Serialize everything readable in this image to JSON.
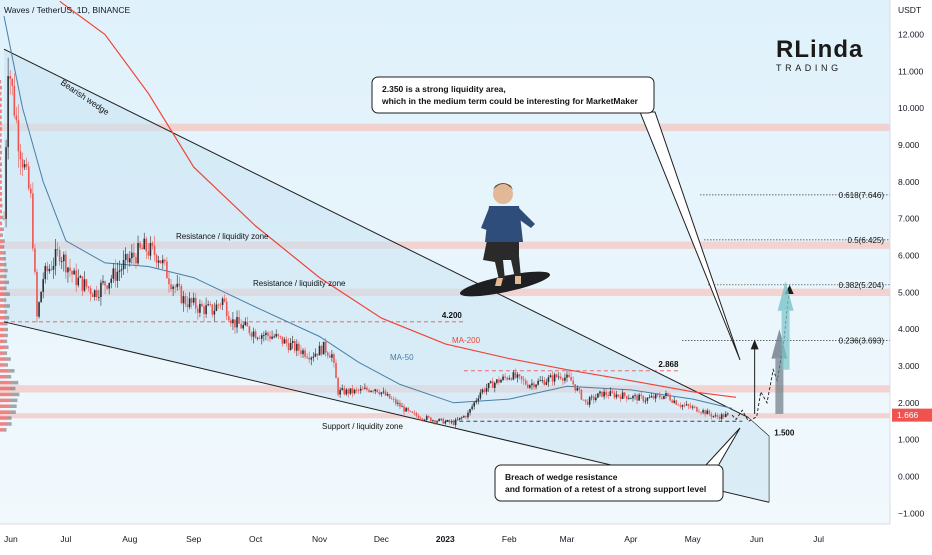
{
  "header": {
    "symbol_title": "Waves / TetherUS, 1D, BINANCE",
    "currency": "USDT"
  },
  "logo": {
    "text_top": "RLinda",
    "text_bottom": "TRADING"
  },
  "colors": {
    "background_top": "#dff1fb",
    "background_bottom": "#f2f9fd",
    "candle_up": "#26a69a",
    "candle_down": "#ef5350",
    "candle_dark": "#2b2f33",
    "ma50": "#4a7fa7",
    "ma200": "#f04438",
    "zone": "#f4c7c3",
    "wedge_fill": "#c9e4f3",
    "price_tag": "#ef5350",
    "fib_projection": "#7bc4c9"
  },
  "chart_data": {
    "type": "candlestick",
    "title": "Waves / TetherUS, 1D, BINANCE",
    "y_unit": "USDT",
    "ylim": [
      -1.2,
      12.9
    ],
    "x_range": [
      "2022-06-01",
      "2023-07-24"
    ],
    "y_axis_ticks": [
      "12.000",
      "11.000",
      "10.000",
      "9.000",
      "8.000",
      "7.000",
      "6.000",
      "5.000",
      "4.000",
      "3.000",
      "2.000",
      "1.000",
      "0.000",
      "−1.000"
    ],
    "x_axis_ticks": [
      {
        "label": "Jun",
        "date": "2022-06-01"
      },
      {
        "label": "Jul",
        "date": "2022-07-01"
      },
      {
        "label": "Aug",
        "date": "2022-08-01"
      },
      {
        "label": "Sep",
        "date": "2022-09-01"
      },
      {
        "label": "Oct",
        "date": "2022-10-01"
      },
      {
        "label": "Nov",
        "date": "2022-11-01"
      },
      {
        "label": "Dec",
        "date": "2022-12-01"
      },
      {
        "label": "2023",
        "date": "2023-01-01",
        "bold": true
      },
      {
        "label": "Feb",
        "date": "2023-02-01"
      },
      {
        "label": "Mar",
        "date": "2023-03-01"
      },
      {
        "label": "Apr",
        "date": "2023-04-01"
      },
      {
        "label": "May",
        "date": "2023-05-01"
      },
      {
        "label": "Jun",
        "date": "2023-06-01"
      },
      {
        "label": "Jul",
        "date": "2023-07-01"
      }
    ],
    "last_price": "1.666",
    "price_path": [
      {
        "date": "2022-06-01",
        "price": 7.0
      },
      {
        "date": "2022-06-03",
        "price": 11.3
      },
      {
        "date": "2022-06-08",
        "price": 9.2
      },
      {
        "date": "2022-06-14",
        "price": 7.5
      },
      {
        "date": "2022-06-17",
        "price": 4.3
      },
      {
        "date": "2022-06-20",
        "price": 5.4
      },
      {
        "date": "2022-06-28",
        "price": 6.1
      },
      {
        "date": "2022-07-05",
        "price": 5.4
      },
      {
        "date": "2022-07-15",
        "price": 5.0
      },
      {
        "date": "2022-07-25",
        "price": 5.5
      },
      {
        "date": "2022-08-01",
        "price": 5.9
      },
      {
        "date": "2022-08-08",
        "price": 6.2
      },
      {
        "date": "2022-08-15",
        "price": 6.0
      },
      {
        "date": "2022-08-20",
        "price": 5.4
      },
      {
        "date": "2022-08-27",
        "price": 4.8
      },
      {
        "date": "2022-09-03",
        "price": 4.6
      },
      {
        "date": "2022-09-10",
        "price": 4.5
      },
      {
        "date": "2022-09-15",
        "price": 4.8
      },
      {
        "date": "2022-09-20",
        "price": 4.2
      },
      {
        "date": "2022-10-01",
        "price": 3.9
      },
      {
        "date": "2022-10-10",
        "price": 3.8
      },
      {
        "date": "2022-10-20",
        "price": 3.5
      },
      {
        "date": "2022-10-28",
        "price": 3.3
      },
      {
        "date": "2022-11-03",
        "price": 3.5
      },
      {
        "date": "2022-11-07",
        "price": 3.3
      },
      {
        "date": "2022-11-10",
        "price": 2.3
      },
      {
        "date": "2022-11-18",
        "price": 2.3
      },
      {
        "date": "2022-11-28",
        "price": 2.4
      },
      {
        "date": "2022-12-08",
        "price": 2.0
      },
      {
        "date": "2022-12-15",
        "price": 1.7
      },
      {
        "date": "2022-12-25",
        "price": 1.55
      },
      {
        "date": "2023-01-05",
        "price": 1.45
      },
      {
        "date": "2023-01-12",
        "price": 1.7
      },
      {
        "date": "2023-01-18",
        "price": 2.3
      },
      {
        "date": "2023-01-25",
        "price": 2.55
      },
      {
        "date": "2023-02-02",
        "price": 2.75
      },
      {
        "date": "2023-02-10",
        "price": 2.5
      },
      {
        "date": "2023-02-18",
        "price": 2.6
      },
      {
        "date": "2023-02-26",
        "price": 2.75
      },
      {
        "date": "2023-03-03",
        "price": 2.6
      },
      {
        "date": "2023-03-10",
        "price": 2.0
      },
      {
        "date": "2023-03-18",
        "price": 2.25
      },
      {
        "date": "2023-03-28",
        "price": 2.2
      },
      {
        "date": "2023-04-08",
        "price": 2.1
      },
      {
        "date": "2023-04-18",
        "price": 2.2
      },
      {
        "date": "2023-04-25",
        "price": 1.95
      },
      {
        "date": "2023-05-05",
        "price": 1.8
      },
      {
        "date": "2023-05-12",
        "price": 1.62
      },
      {
        "date": "2023-05-18",
        "price": 1.666
      }
    ],
    "ma50": [
      {
        "date": "2022-06-01",
        "price": 12.5
      },
      {
        "date": "2022-06-10",
        "price": 10.0
      },
      {
        "date": "2022-06-20",
        "price": 8.0
      },
      {
        "date": "2022-07-01",
        "price": 6.4
      },
      {
        "date": "2022-07-20",
        "price": 5.8
      },
      {
        "date": "2022-08-10",
        "price": 5.7
      },
      {
        "date": "2022-09-01",
        "price": 5.4
      },
      {
        "date": "2022-10-01",
        "price": 4.6
      },
      {
        "date": "2022-11-01",
        "price": 3.8
      },
      {
        "date": "2022-11-20",
        "price": 3.1
      },
      {
        "date": "2022-12-10",
        "price": 2.5
      },
      {
        "date": "2023-01-05",
        "price": 2.0
      },
      {
        "date": "2023-02-01",
        "price": 2.1
      },
      {
        "date": "2023-03-01",
        "price": 2.45
      },
      {
        "date": "2023-04-01",
        "price": 2.35
      },
      {
        "date": "2023-05-01",
        "price": 2.1
      },
      {
        "date": "2023-05-20",
        "price": 1.85
      }
    ],
    "ma200": [
      {
        "date": "2022-06-28",
        "price": 12.9
      },
      {
        "date": "2022-07-20",
        "price": 12.0
      },
      {
        "date": "2022-08-10",
        "price": 10.4
      },
      {
        "date": "2022-09-01",
        "price": 8.4
      },
      {
        "date": "2022-10-01",
        "price": 6.8
      },
      {
        "date": "2022-11-01",
        "price": 5.4
      },
      {
        "date": "2022-12-01",
        "price": 4.3
      },
      {
        "date": "2023-01-01",
        "price": 3.6
      },
      {
        "date": "2023-02-01",
        "price": 3.2
      },
      {
        "date": "2023-03-01",
        "price": 2.9
      },
      {
        "date": "2023-04-01",
        "price": 2.6
      },
      {
        "date": "2023-05-01",
        "price": 2.3
      },
      {
        "date": "2023-05-22",
        "price": 2.15
      }
    ],
    "horizontal_zones": [
      {
        "y_low": 9.38,
        "y_high": 9.58
      },
      {
        "y_low": 6.18,
        "y_high": 6.38
      },
      {
        "y_low": 4.9,
        "y_high": 5.1
      },
      {
        "y_low": 2.28,
        "y_high": 2.48
      },
      {
        "y_low": 1.58,
        "y_high": 1.72
      }
    ],
    "fib_levels": [
      {
        "label": "0.618(7.646)",
        "value": 7.646
      },
      {
        "label": "0.5(6.425)",
        "value": 6.425
      },
      {
        "label": "0.382(5.204)",
        "value": 5.204
      },
      {
        "label": "0.236(3.693)",
        "value": 3.693
      }
    ],
    "price_lines": [
      {
        "label": "4.200",
        "value": 4.2,
        "from": "2022-06-01",
        "to": "2023-01-10"
      },
      {
        "label": "2.868",
        "value": 2.868,
        "from": "2023-01-10",
        "to": "2023-04-25"
      },
      {
        "label": "1.500",
        "value": 1.5,
        "from": "2023-01-01",
        "to": "2023-05-25"
      }
    ],
    "wedge": {
      "upper": [
        {
          "date": "2022-06-01",
          "price": 11.6
        },
        {
          "date": "2023-05-28",
          "price": 1.6
        }
      ],
      "lower": [
        {
          "date": "2022-06-01",
          "price": 4.2
        },
        {
          "date": "2023-06-07",
          "price": -0.7
        }
      ],
      "right_edge": {
        "date": "2023-06-07",
        "price_top": 1.1
      }
    },
    "forecast_path": [
      {
        "date": "2023-05-20",
        "price": 1.666
      },
      {
        "date": "2023-05-22",
        "price": 1.55
      },
      {
        "date": "2023-05-25",
        "price": 1.8
      },
      {
        "date": "2023-05-28",
        "price": 1.5
      },
      {
        "date": "2023-06-01",
        "price": 1.62
      },
      {
        "date": "2023-06-03",
        "price": 2.3
      },
      {
        "date": "2023-06-06",
        "price": 2.0
      },
      {
        "date": "2023-06-09",
        "price": 2.9
      },
      {
        "date": "2023-06-11",
        "price": 2.6
      },
      {
        "date": "2023-06-14",
        "price": 3.6
      },
      {
        "date": "2023-06-17",
        "price": 5.2
      }
    ],
    "line_labels": {
      "ma50": "MA-50",
      "ma200": "MA-200"
    },
    "annotations": [
      {
        "text": "Bearish wedge"
      },
      {
        "text": "Resistance / liquidity zone"
      },
      {
        "text": "Resistance / liquidity zone"
      },
      {
        "text": "Support / liquidity zone"
      },
      {
        "lines": [
          "2.350 is a strong liquidity area,",
          "which in the medium term could be interesting for MarketMaker"
        ]
      },
      {
        "lines": [
          "Breach of wedge resistance",
          "and formation of a retest of a strong support level"
        ]
      }
    ]
  }
}
